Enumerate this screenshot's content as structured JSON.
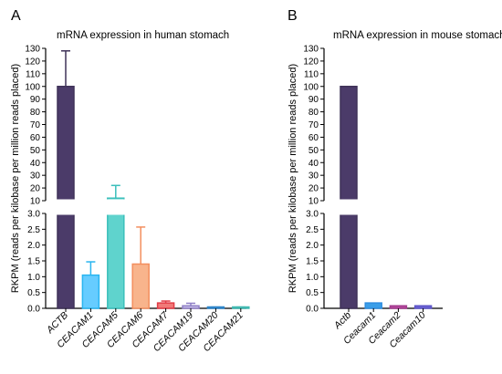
{
  "chart_data": [
    {
      "panel_label": "A",
      "type": "bar",
      "title": "mRNA expression in human stomach",
      "ylabel": "RKPM (reads per kilobase per million reads placed)",
      "xlabel": "",
      "axis_break": true,
      "lower_ylim": [
        0,
        3.0
      ],
      "lower_ticks": [
        "0.0",
        "0.5",
        "1.0",
        "1.5",
        "2.0",
        "2.5",
        "3.0"
      ],
      "upper_ylim": [
        10,
        130
      ],
      "upper_ticks": [
        "10",
        "20",
        "30",
        "40",
        "50",
        "60",
        "70",
        "80",
        "90",
        "100",
        "110",
        "120",
        "130"
      ],
      "categories": [
        "ACTB",
        "CEACAM1",
        "CEACAM5",
        "CEACAM6",
        "CEACAM7",
        "CEACAM19",
        "CEACAM20",
        "CEACAM21"
      ],
      "values": [
        100,
        1.05,
        12,
        1.4,
        0.17,
        0.08,
        0.02,
        0.02
      ],
      "error_upper": [
        128,
        1.47,
        22,
        2.57,
        0.23,
        0.16,
        0.04,
        0.04
      ],
      "bar_colors": [
        "#3f3258",
        "#29b5f0",
        "#3bbfbb",
        "#f38e5e",
        "#e23c46",
        "#8f7fc6",
        "#2e84c8",
        "#40b8b0"
      ],
      "bar_fills": [
        "#4b3b69",
        "#66ccff",
        "#5fd3cd",
        "#f8b48c",
        "#f07a78",
        "#c7bde8",
        "#7fb3e0",
        "#8ad8d2"
      ]
    },
    {
      "panel_label": "B",
      "type": "bar",
      "title": "mRNA expression in mouse stomach",
      "ylabel": "RKPM (reads per kilobase per million reads placed)",
      "xlabel": "",
      "axis_break": true,
      "lower_ylim": [
        0,
        3.0
      ],
      "lower_ticks": [
        "0.0",
        "0.5",
        "1.0",
        "1.5",
        "2.0",
        "2.5",
        "3.0"
      ],
      "upper_ylim": [
        10,
        130
      ],
      "upper_ticks": [
        "10",
        "20",
        "30",
        "40",
        "50",
        "60",
        "70",
        "80",
        "90",
        "100",
        "110",
        "120",
        "130"
      ],
      "categories": [
        "Actb",
        "Ceacam1",
        "Ceacam2",
        "Ceacam10"
      ],
      "values": [
        100,
        0.17,
        0.08,
        0.08
      ],
      "error_upper": [
        null,
        null,
        null,
        null
      ],
      "bar_colors": [
        "#3f3258",
        "#2f8ee0",
        "#a33a8e",
        "#5d55c8"
      ],
      "bar_fills": [
        "#4b3b69",
        "#3a9ee8",
        "#b54a9e",
        "#6b63d4"
      ]
    }
  ]
}
